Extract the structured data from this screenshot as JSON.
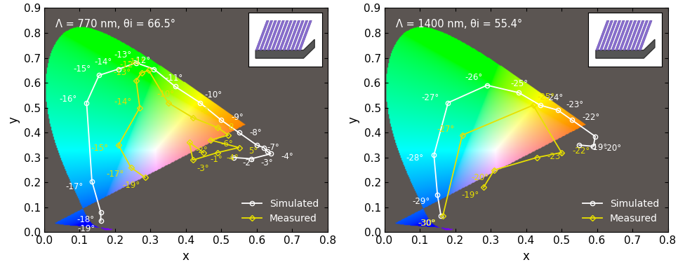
{
  "chart_data": [
    {
      "type": "line",
      "annotation": "Λ = 770 nm, θi = 66.5°",
      "x_label": "x",
      "y_label": "y",
      "xlim": [
        0,
        0.8
      ],
      "ylim": [
        0,
        0.9
      ],
      "xticks": [
        {
          "value": 0,
          "label": "0.0"
        },
        0.1,
        0.2,
        0.3,
        0.4,
        0.5,
        0.6,
        0.7,
        0.8
      ],
      "yticks": [
        {
          "value": 0,
          "label": "0.0"
        },
        0.1,
        0.2,
        0.3,
        0.4,
        0.5,
        0.6,
        0.7,
        0.8,
        0.9
      ],
      "legend": "lower right",
      "series": [
        {
          "name": "Simulated",
          "color": "#ffffff",
          "marker": "o",
          "x": [
            0.16,
            0.16,
            0.135,
            0.12,
            0.155,
            0.21,
            0.26,
            0.31,
            0.37,
            0.44,
            0.5,
            0.55,
            0.6,
            0.62,
            0.63,
            0.64,
            0.585,
            0.535
          ],
          "values": [
            0.045,
            0.08,
            0.205,
            0.52,
            0.63,
            0.655,
            0.68,
            0.655,
            0.585,
            0.52,
            0.45,
            0.4,
            0.35,
            0.34,
            0.325,
            0.315,
            0.295,
            0.3
          ],
          "point_labels": [
            "-19°",
            "-18°",
            "-17°",
            "-16°",
            "-15°",
            "-14°",
            "-13°",
            "-12°",
            "-11°",
            "-10°",
            "-9°",
            "-8°",
            "-7°",
            null,
            null,
            "-4°",
            "-3°",
            "-2°"
          ]
        },
        {
          "name": "Measured",
          "color": "#e8e000",
          "marker": "D",
          "x": [
            0.285,
            0.245,
            0.21,
            0.27,
            0.26,
            0.275,
            0.295,
            0.35,
            0.42,
            0.49,
            0.52,
            0.47,
            0.55,
            0.49,
            0.42,
            0.41,
            0.45
          ],
          "values": [
            0.22,
            0.26,
            0.35,
            0.5,
            0.61,
            0.64,
            0.65,
            0.52,
            0.46,
            0.42,
            0.39,
            0.37,
            0.34,
            0.32,
            0.29,
            0.36,
            0.32
          ],
          "point_labels": [
            "-19°",
            "-17°",
            "-15°",
            "-14°",
            "-13°",
            "-12°",
            "-11°",
            "-10°",
            "-9°",
            "8",
            null,
            "-6°",
            "5°",
            "-4°",
            "-3°",
            "-2°",
            "-1°"
          ]
        }
      ]
    },
    {
      "type": "line",
      "annotation": "Λ = 1400 nm, θi = 55.4°",
      "x_label": "x",
      "y_label": "y",
      "xlim": [
        0,
        0.8
      ],
      "ylim": [
        0,
        0.9
      ],
      "xticks": [
        {
          "value": 0,
          "label": "0.0"
        },
        0.1,
        0.2,
        0.3,
        0.4,
        0.5,
        0.6,
        0.7,
        0.8
      ],
      "yticks": [
        {
          "value": 0,
          "label": "0.0"
        },
        0.1,
        0.2,
        0.3,
        0.4,
        0.5,
        0.6,
        0.7,
        0.8,
        0.9
      ],
      "legend": "lower right",
      "series": [
        {
          "name": "Simulated",
          "color": "#ffffff",
          "marker": "o",
          "x": [
            0.55,
            0.59,
            0.595,
            0.53,
            0.49,
            0.44,
            0.38,
            0.29,
            0.18,
            0.14,
            0.15,
            0.16
          ],
          "values": [
            0.35,
            0.345,
            0.385,
            0.45,
            0.49,
            0.51,
            0.56,
            0.59,
            0.52,
            0.31,
            0.15,
            0.065
          ],
          "point_labels": [
            "-19°",
            "-20°",
            null,
            "-22°",
            "-23°",
            "-24°",
            "-25°",
            "-26°",
            "-27°",
            "-28°",
            "-29°",
            "-30°"
          ]
        },
        {
          "name": "Measured",
          "color": "#e8e000",
          "marker": "D",
          "x": [
            0.28,
            0.31,
            0.43,
            0.5,
            0.42,
            0.22,
            0.165
          ],
          "values": [
            0.18,
            0.25,
            0.3,
            0.32,
            0.51,
            0.39,
            0.065
          ],
          "point_labels": [
            "-19°",
            "-20°",
            "-23°",
            "-22°",
            "-25°",
            "-27°",
            "-30°"
          ]
        }
      ]
    }
  ]
}
